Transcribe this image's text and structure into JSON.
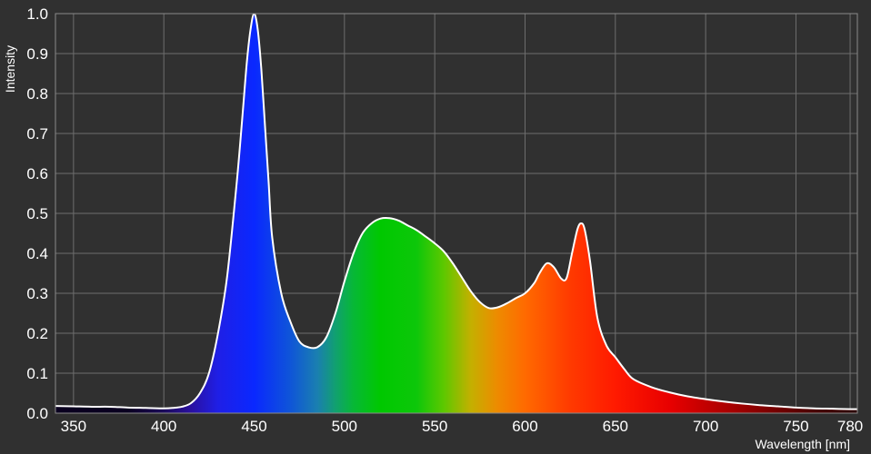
{
  "chart_data": {
    "type": "area",
    "title": "",
    "xlabel": "Wavelength [nm]",
    "ylabel": "Intensity",
    "xlim": [
      340,
      784
    ],
    "ylim": [
      0,
      1.0
    ],
    "grid": true,
    "x_ticks": [
      350,
      400,
      450,
      500,
      550,
      600,
      650,
      700,
      750,
      780
    ],
    "x_tick_labels": [
      "350",
      "400",
      "450",
      "500",
      "550",
      "600",
      "650",
      "700",
      "750",
      "780"
    ],
    "y_ticks": [
      0.0,
      0.1,
      0.2,
      0.3,
      0.4,
      0.5,
      0.6,
      0.7,
      0.8,
      0.9,
      1.0
    ],
    "y_tick_labels": [
      "0.0",
      "0.1",
      "0.2",
      "0.3",
      "0.4",
      "0.5",
      "0.6",
      "0.7",
      "0.8",
      "0.9",
      "1.0"
    ],
    "fill": "visible-spectrum gradient",
    "series": [
      {
        "x": [
          340,
          350,
          360,
          370,
          380,
          390,
          400,
          405,
          410,
          415,
          420,
          425,
          430,
          435,
          440,
          442,
          444,
          446,
          448,
          450,
          452,
          454,
          456,
          458,
          460,
          465,
          470,
          475,
          480,
          485,
          490,
          495,
          500,
          505,
          510,
          515,
          520,
          525,
          530,
          535,
          540,
          545,
          550,
          555,
          560,
          565,
          570,
          575,
          580,
          585,
          590,
          595,
          600,
          605,
          608,
          612,
          616,
          620,
          623,
          626,
          629,
          631,
          633,
          636,
          640,
          645,
          650,
          655,
          660,
          670,
          680,
          690,
          700,
          710,
          720,
          730,
          740,
          750,
          760,
          770,
          780,
          784
        ],
        "y": [
          0.018,
          0.017,
          0.016,
          0.016,
          0.014,
          0.013,
          0.012,
          0.013,
          0.016,
          0.025,
          0.05,
          0.1,
          0.2,
          0.34,
          0.56,
          0.66,
          0.77,
          0.88,
          0.96,
          1.0,
          0.96,
          0.86,
          0.72,
          0.58,
          0.44,
          0.3,
          0.23,
          0.18,
          0.165,
          0.165,
          0.19,
          0.25,
          0.33,
          0.4,
          0.45,
          0.475,
          0.487,
          0.488,
          0.482,
          0.47,
          0.458,
          0.442,
          0.425,
          0.405,
          0.375,
          0.34,
          0.305,
          0.278,
          0.263,
          0.265,
          0.275,
          0.288,
          0.3,
          0.325,
          0.35,
          0.375,
          0.365,
          0.337,
          0.338,
          0.4,
          0.46,
          0.475,
          0.46,
          0.38,
          0.24,
          0.17,
          0.14,
          0.11,
          0.085,
          0.065,
          0.052,
          0.042,
          0.035,
          0.029,
          0.024,
          0.02,
          0.017,
          0.014,
          0.012,
          0.011,
          0.01,
          0.01
        ]
      }
    ]
  }
}
